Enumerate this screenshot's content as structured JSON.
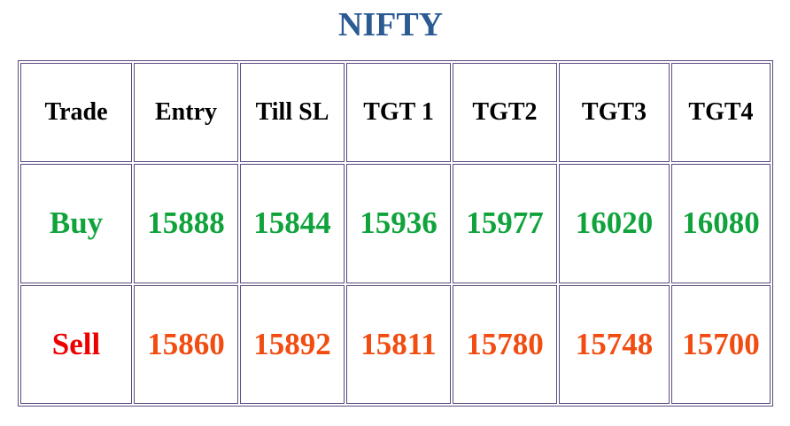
{
  "header": {
    "title": "NIFTY"
  },
  "table": {
    "columns": [
      "Trade",
      "Entry",
      "Till SL",
      "TGT 1",
      "TGT2",
      "TGT3",
      "TGT4"
    ],
    "rows": [
      [
        "Buy",
        15888,
        15844,
        15936,
        15977,
        16020,
        16080
      ],
      [
        "Sell",
        15860,
        15892,
        15811,
        15780,
        15748,
        15700
      ]
    ]
  }
}
